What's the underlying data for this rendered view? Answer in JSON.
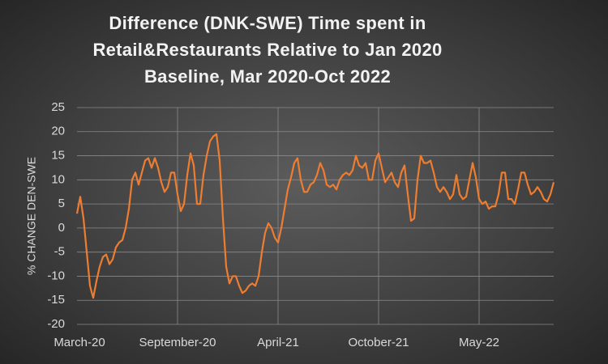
{
  "chart_data": {
    "type": "line",
    "title": "Difference (DNK-SWE) Time spent in Retail&Restaurants Relative to Jan 2020 Baseline, Mar 2020-Oct 2022",
    "y_label": "% CHANGE DEN-SWE",
    "categories": [
      "March-20",
      null,
      null,
      null,
      null,
      null,
      null,
      null,
      null,
      null,
      null,
      null,
      null,
      null,
      null,
      null,
      null,
      null,
      null,
      null,
      null,
      null,
      null,
      null,
      null,
      null,
      null,
      null,
      null,
      null,
      null,
      "September-20",
      null,
      null,
      null,
      null,
      null,
      null,
      null,
      null,
      null,
      null,
      null,
      null,
      null,
      null,
      null,
      null,
      null,
      null,
      null,
      null,
      null,
      null,
      null,
      null,
      null,
      null,
      null,
      null,
      null,
      null,
      "April-21",
      null,
      null,
      null,
      null,
      null,
      null,
      null,
      null,
      null,
      null,
      null,
      null,
      null,
      null,
      null,
      null,
      null,
      null,
      null,
      null,
      null,
      null,
      null,
      null,
      null,
      null,
      null,
      null,
      null,
      null,
      "October-21",
      null,
      null,
      null,
      null,
      null,
      null,
      null,
      null,
      null,
      null,
      null,
      null,
      null,
      null,
      null,
      null,
      null,
      null,
      null,
      null,
      null,
      null,
      null,
      null,
      null,
      null,
      null,
      null,
      null,
      null,
      "May-22",
      null,
      null,
      null,
      null,
      null,
      null,
      null,
      null,
      null,
      null,
      null,
      null,
      null,
      null,
      null,
      null,
      null,
      null,
      null,
      null,
      null,
      null,
      null
    ],
    "series": [
      {
        "name": "DNK-SWE",
        "color": "#ed7d31",
        "values": [
          3,
          6.5,
          2,
          -5,
          -12,
          -14.5,
          -11,
          -8,
          -6,
          -5.5,
          -7.5,
          -6.5,
          -4,
          -3,
          -2.5,
          0,
          4,
          10,
          11.5,
          9,
          11.5,
          14,
          14.5,
          12.5,
          14.5,
          12.5,
          9.5,
          7.5,
          8.5,
          11.5,
          11.5,
          7,
          3.5,
          5,
          11,
          15.5,
          13,
          5,
          5,
          11,
          15,
          18,
          19,
          19.5,
          14,
          2,
          -8,
          -11.5,
          -10,
          -10,
          -12,
          -13.5,
          -13,
          -12,
          -11.5,
          -12,
          -10,
          -5,
          -1,
          1,
          0,
          -2,
          -3,
          0,
          4,
          8,
          10.5,
          13.5,
          14.5,
          10,
          7.5,
          7.5,
          9,
          9.5,
          11,
          13.5,
          12,
          9,
          8.5,
          9,
          8,
          10,
          11,
          11.5,
          11,
          12,
          15,
          13,
          12.5,
          13.5,
          10,
          10,
          14,
          15.5,
          12.5,
          9.5,
          10.5,
          11.5,
          9.5,
          8.5,
          11.5,
          13,
          7,
          1.5,
          2,
          10,
          15,
          13.5,
          13.5,
          14,
          11.5,
          8.5,
          7.5,
          8.5,
          7.5,
          6,
          7,
          11,
          7,
          6,
          6.5,
          10,
          13.5,
          10.5,
          6,
          5,
          5.5,
          4,
          4.5,
          4.5,
          7,
          11.5,
          11.5,
          6,
          6,
          5,
          8,
          11.5,
          11.5,
          9,
          7,
          7.5,
          8.5,
          7.5,
          6,
          5.5,
          7,
          9.5
        ]
      }
    ],
    "ylim": [
      -20,
      25
    ],
    "yticks": [
      -20,
      -15,
      -10,
      -5,
      0,
      5,
      10,
      15,
      20,
      25
    ],
    "grid": true
  }
}
